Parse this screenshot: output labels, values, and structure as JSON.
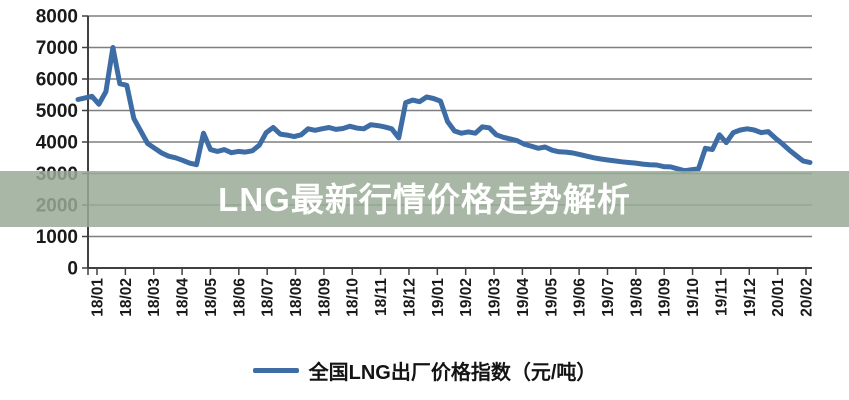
{
  "banner": {
    "title": "LNG最新行情价格走势解析",
    "overlay_color": "#9aab97",
    "overlay_opacity": 0.85,
    "text_color": "#ffffff"
  },
  "chart_data": {
    "type": "line",
    "unit": "元/吨",
    "ylim": [
      0,
      8000
    ],
    "y_ticks": [
      0,
      1000,
      2000,
      3000,
      4000,
      5000,
      6000,
      7000,
      8000
    ],
    "x_tick_labels": [
      "18/01",
      "18/02",
      "18/03",
      "18/04",
      "18/05",
      "18/06",
      "18/07",
      "18/08",
      "18/09",
      "18/10",
      "18/11",
      "18/12",
      "19/01",
      "19/02",
      "19/03",
      "19/04",
      "19/05",
      "19/06",
      "19/07",
      "19/08",
      "19/09",
      "19/10",
      "19/11",
      "19/12",
      "20/01",
      "20/02"
    ],
    "grid": "horizontal",
    "legend_position": "bottom",
    "axis_color": "#404040",
    "grid_color": "#7f7f7f",
    "label_color": "#1a1a1a",
    "series": [
      {
        "name": "全国LNG出厂价格指数（元/吨）",
        "color": "#3e6da6",
        "values": [
          5350,
          5400,
          5450,
          5200,
          5600,
          7000,
          5850,
          5800,
          4750,
          4350,
          3950,
          3800,
          3650,
          3550,
          3500,
          3420,
          3330,
          3280,
          4280,
          3760,
          3700,
          3760,
          3660,
          3700,
          3680,
          3720,
          3900,
          4300,
          4460,
          4250,
          4220,
          4170,
          4230,
          4420,
          4370,
          4420,
          4460,
          4400,
          4430,
          4500,
          4440,
          4420,
          4550,
          4520,
          4480,
          4420,
          4130,
          5250,
          5330,
          5280,
          5430,
          5380,
          5300,
          4650,
          4350,
          4280,
          4320,
          4280,
          4480,
          4450,
          4230,
          4150,
          4100,
          4040,
          3930,
          3870,
          3800,
          3840,
          3740,
          3690,
          3680,
          3650,
          3600,
          3550,
          3500,
          3460,
          3430,
          3400,
          3370,
          3350,
          3330,
          3300,
          3280,
          3270,
          3220,
          3210,
          3150,
          3090,
          3120,
          3150,
          3800,
          3760,
          4230,
          3980,
          4300,
          4380,
          4420,
          4380,
          4300,
          4330,
          4130,
          3950,
          3750,
          3570,
          3400,
          3350
        ]
      }
    ]
  },
  "legend": {
    "label": "全国LNG出厂价格指数（元/吨）"
  }
}
